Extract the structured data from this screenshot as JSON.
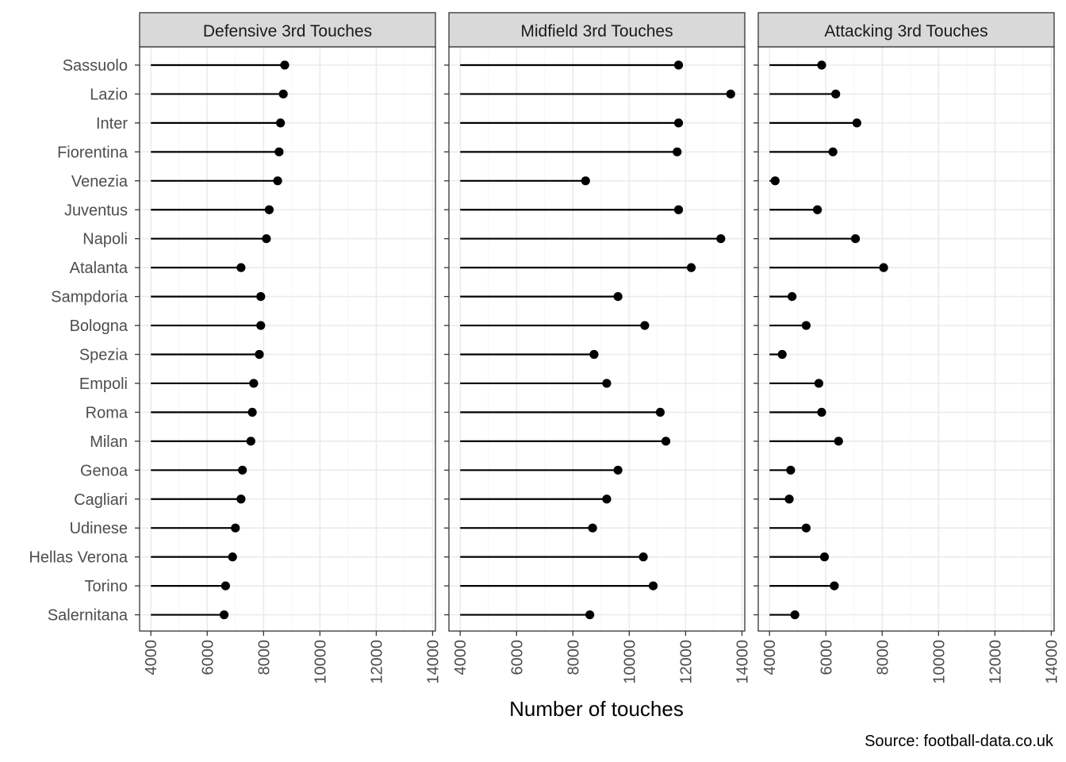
{
  "chart_data": {
    "type": "lollipop",
    "xlabel": "Number of touches",
    "ylabel": "",
    "caption": "Source: football-data.co.uk",
    "xlim": [
      3600,
      14100
    ],
    "x_ticks": [
      4000,
      6000,
      8000,
      10000,
      12000,
      14000
    ],
    "baseline": 4000,
    "grid": true,
    "theme": "bw",
    "categories": [
      "Sassuolo",
      "Lazio",
      "Inter",
      "Fiorentina",
      "Venezia",
      "Juventus",
      "Napoli",
      "Atalanta",
      "Sampdoria",
      "Bologna",
      "Spezia",
      "Empoli",
      "Roma",
      "Milan",
      "Genoa",
      "Cagliari",
      "Udinese",
      "Hellas Verona",
      "Torino",
      "Salernitana"
    ],
    "panels": [
      {
        "title": "Defensive 3rd Touches",
        "values": [
          8750,
          8700,
          8600,
          8550,
          8500,
          8200,
          8100,
          7200,
          7900,
          7900,
          7850,
          7650,
          7600,
          7550,
          7250,
          7200,
          7000,
          6900,
          6650,
          6600
        ]
      },
      {
        "title": "Midfield 3rd Touches",
        "values": [
          11750,
          13600,
          11750,
          11700,
          8450,
          11750,
          13250,
          12200,
          9600,
          10550,
          8750,
          9200,
          11100,
          11300,
          9600,
          9200,
          8700,
          10500,
          10850,
          8600
        ]
      },
      {
        "title": "Attacking 3rd Touches",
        "values": [
          5850,
          6350,
          7100,
          6250,
          4200,
          5700,
          7050,
          8050,
          4800,
          5300,
          4450,
          5750,
          5850,
          6450,
          4750,
          4700,
          5300,
          5950,
          6300,
          4900
        ]
      }
    ],
    "colors": {
      "panel_border": "#333333",
      "strip_fill": "#d9d9d9",
      "grid_major": "#ebebeb",
      "grid_minor": "#f5f5f5",
      "mark": "#000000",
      "tick_text": "#4d4d4d"
    }
  }
}
